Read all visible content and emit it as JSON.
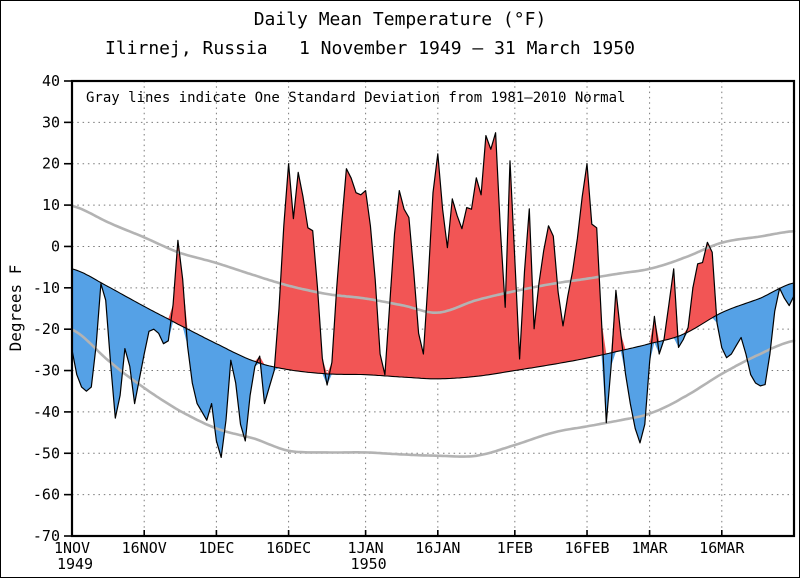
{
  "header": {
    "title": "Daily Mean Temperature (°F)",
    "station": "Ilirnej, Russia",
    "period": "1 November 1949 — 31 March 1950"
  },
  "colors": {
    "above_normal_fill": "#f25555",
    "below_normal_fill": "#55a1e6",
    "sd_line": "#b3b3b3",
    "curve_line": "#000000",
    "grid_dots": "#7a7a7a",
    "axis": "#000000"
  },
  "chart_data": {
    "type": "area",
    "title": "Daily Mean Temperature (°F)",
    "subtitle_left": "Ilirnej, Russia",
    "subtitle_right": "1 November 1949 — 31 March 1950",
    "legend_note": "Gray lines indicate One Standard Deviation from 1981–2010 Normal",
    "ylabel": "Degrees F",
    "ylim": [
      -70,
      40
    ],
    "grid": true,
    "y_ticks": [
      40,
      30,
      20,
      10,
      0,
      -10,
      -20,
      -30,
      -40,
      -50,
      -60,
      -70
    ],
    "x_range_days": [
      0,
      150
    ],
    "x_ticks": [
      {
        "day": 0,
        "label": "1NOV",
        "year": "1949"
      },
      {
        "day": 15,
        "label": "16NOV"
      },
      {
        "day": 30,
        "label": "1DEC"
      },
      {
        "day": 45,
        "label": "16DEC"
      },
      {
        "day": 61,
        "label": "1JAN",
        "year": "1950"
      },
      {
        "day": 76,
        "label": "16JAN"
      },
      {
        "day": 92,
        "label": "1FEB"
      },
      {
        "day": 107,
        "label": "16FEB"
      },
      {
        "day": 120,
        "label": "1MAR"
      },
      {
        "day": 135,
        "label": "16MAR"
      }
    ],
    "fill_rule": {
      "above_normal": "red",
      "below_normal": "blue"
    },
    "series": [
      {
        "name": "Daily Mean Temperature (°F)",
        "style": "daily-jagged-filled",
        "values": [
          -25,
          -31,
          -34,
          -35,
          -34,
          -24,
          -9,
          -13,
          -28,
          -41.5,
          -36,
          -24.7,
          -29,
          -38,
          -32,
          -26,
          -20.5,
          -20,
          -21,
          -23.5,
          -22.8,
          -14,
          1.5,
          -8,
          -24,
          -33,
          -38,
          -40,
          -42,
          -38,
          -47,
          -51,
          -42,
          -27.5,
          -33,
          -43,
          -47,
          -36,
          -29,
          -26.5,
          -38,
          -34,
          -30,
          -15,
          5,
          20,
          6.7,
          17.9,
          12,
          4.5,
          3.8,
          -10,
          -27,
          -33.5,
          -28,
          -10,
          5,
          18.8,
          16.5,
          13,
          12.5,
          13.5,
          5,
          -8,
          -26,
          -31,
          -14,
          3,
          13.5,
          9,
          7,
          -6,
          -21,
          -26,
          -8,
          13,
          22.4,
          9,
          -0.3,
          11.5,
          7.5,
          4.3,
          9.4,
          9,
          16.6,
          12.5,
          26.8,
          23.5,
          27.5,
          4,
          -14.7,
          20.7,
          -3,
          -27.2,
          -6,
          9.1,
          -19.9,
          -9,
          -1,
          5,
          2.5,
          -11,
          -19.2,
          -12,
          -6,
          2,
          12,
          20,
          5.4,
          4.5,
          -18,
          -42.6,
          -29,
          -10.6,
          -21,
          -30.8,
          -38,
          -44,
          -47.5,
          -43,
          -28,
          -16.9,
          -26,
          -22.5,
          -14,
          -5.4,
          -24.4,
          -22.5,
          -19.6,
          -10,
          -4.2,
          -3.9,
          1,
          -1.4,
          -18.5,
          -24.5,
          -26.9,
          -26,
          -24,
          -22,
          -26,
          -31,
          -33,
          -33.7,
          -33.4,
          -26,
          -15.7,
          -10.1,
          -12.5,
          -14.3,
          -11.9
        ]
      },
      {
        "name": "1981–2010 Normal",
        "style": "black-line",
        "control_points": [
          [
            0,
            -5.4
          ],
          [
            8,
            -10
          ],
          [
            15,
            -14.5
          ],
          [
            22,
            -18.8
          ],
          [
            30,
            -23.5
          ],
          [
            38,
            -27.8
          ],
          [
            45,
            -29.8
          ],
          [
            53,
            -30.8
          ],
          [
            61,
            -31
          ],
          [
            69,
            -31.6
          ],
          [
            76,
            -32
          ],
          [
            84,
            -31.4
          ],
          [
            92,
            -30
          ],
          [
            100,
            -28.5
          ],
          [
            107,
            -27
          ],
          [
            114,
            -25.2
          ],
          [
            120,
            -23.5
          ],
          [
            127,
            -21.2
          ],
          [
            135,
            -16
          ],
          [
            143,
            -12.5
          ],
          [
            150,
            -8.8
          ]
        ]
      },
      {
        "name": "Normal + 1 Std Dev",
        "style": "gray-line",
        "control_points": [
          [
            0,
            9.8
          ],
          [
            8,
            5.6
          ],
          [
            15,
            2.2
          ],
          [
            22,
            -1.4
          ],
          [
            30,
            -4
          ],
          [
            38,
            -7
          ],
          [
            45,
            -9.5
          ],
          [
            53,
            -11.5
          ],
          [
            61,
            -12.6
          ],
          [
            69,
            -14.3
          ],
          [
            76,
            -16
          ],
          [
            84,
            -13
          ],
          [
            92,
            -10.8
          ],
          [
            100,
            -9
          ],
          [
            107,
            -7.8
          ],
          [
            114,
            -6.5
          ],
          [
            120,
            -5.4
          ],
          [
            127,
            -2.8
          ],
          [
            135,
            0.9
          ],
          [
            143,
            2.4
          ],
          [
            150,
            3.7
          ]
        ]
      },
      {
        "name": "Normal − 1 Std Dev",
        "style": "gray-line",
        "control_points": [
          [
            0,
            -20.1
          ],
          [
            8,
            -28
          ],
          [
            15,
            -34.2
          ],
          [
            22,
            -39.5
          ],
          [
            30,
            -44
          ],
          [
            38,
            -46.5
          ],
          [
            45,
            -49.4
          ],
          [
            53,
            -49.8
          ],
          [
            61,
            -49.8
          ],
          [
            69,
            -50.3
          ],
          [
            76,
            -50.6
          ],
          [
            84,
            -50.6
          ],
          [
            92,
            -48
          ],
          [
            100,
            -45
          ],
          [
            107,
            -43.5
          ],
          [
            114,
            -42
          ],
          [
            120,
            -40.4
          ],
          [
            127,
            -36.5
          ],
          [
            135,
            -30.8
          ],
          [
            143,
            -26
          ],
          [
            150,
            -22.8
          ]
        ]
      }
    ]
  }
}
